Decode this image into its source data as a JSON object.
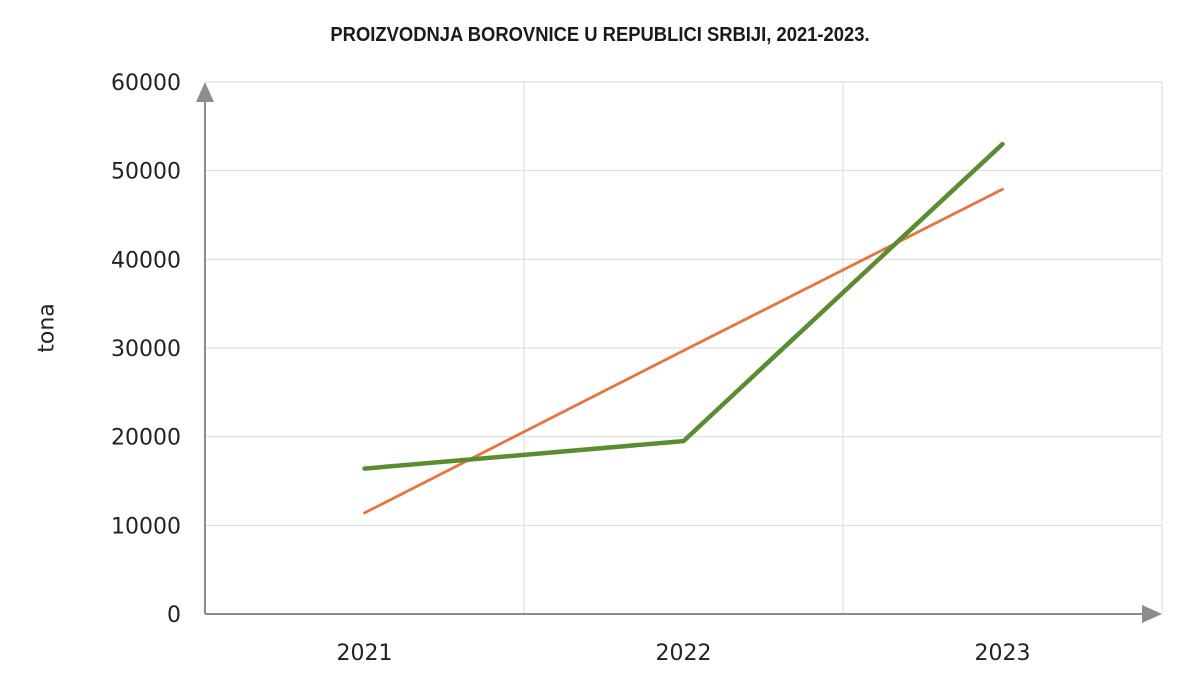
{
  "chart_data": {
    "type": "line",
    "title": "PROIZVODNJA BOROVNICE U REPUBLICI SRBIJI, 2021-2023.",
    "xlabel": "",
    "ylabel": "tona",
    "categories": [
      "2021",
      "2022",
      "2023"
    ],
    "yticks": [
      "0",
      "10000",
      "20000",
      "30000",
      "40000",
      "50000",
      "60000"
    ],
    "ylim": [
      0,
      60000
    ],
    "grid": true,
    "legend": "none",
    "series": [
      {
        "color": "#5b8c32",
        "values": [
          16400,
          19500,
          53000
        ]
      },
      {
        "color": "#e8743b",
        "values": [
          11400,
          29700,
          47900
        ]
      }
    ]
  }
}
